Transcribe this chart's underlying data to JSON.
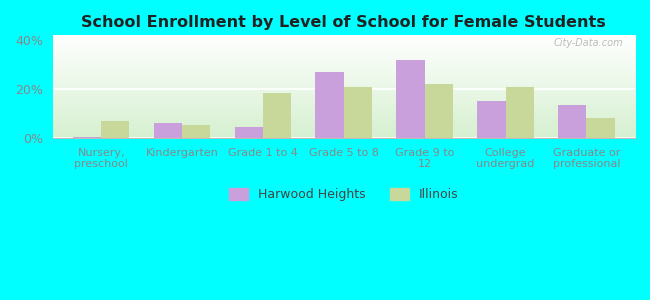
{
  "title": "School Enrollment by Level of School for Female Students",
  "categories": [
    "Nursery,\npreschool",
    "Kindergarten",
    "Grade 1 to 4",
    "Grade 5 to 8",
    "Grade 9 to\n12",
    "College\nundergrad",
    "Graduate or\nprofessional"
  ],
  "harwood_heights": [
    0.5,
    6.0,
    4.5,
    27.0,
    32.0,
    15.0,
    13.5
  ],
  "illinois": [
    7.0,
    5.5,
    18.5,
    21.0,
    22.0,
    21.0,
    8.0
  ],
  "harwood_color": "#c9a0dc",
  "illinois_color": "#c8d89a",
  "background_color": "#00ffff",
  "grad_top": "#ffffff",
  "grad_bottom": "#d6f0d0",
  "ylim": [
    0,
    42
  ],
  "yticks": [
    0,
    20,
    40
  ],
  "ytick_labels": [
    "0%",
    "20%",
    "40%"
  ],
  "tick_color": "#888888",
  "legend_harwood": "Harwood Heights",
  "legend_illinois": "Illinois",
  "watermark": "City-Data.com",
  "bar_width": 0.35,
  "xlim_left": -0.6,
  "xlim_right": 6.6
}
